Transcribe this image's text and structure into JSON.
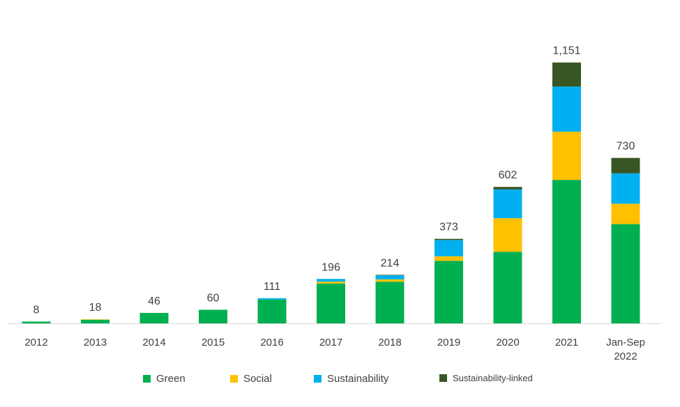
{
  "chart_data": {
    "type": "bar",
    "stacked": true,
    "categories": [
      "2012",
      "2013",
      "2014",
      "2015",
      "2016",
      "2017",
      "2018",
      "2019",
      "2020",
      "2021",
      "Jan-Sep\n2022"
    ],
    "totals_labels": [
      "8",
      "18",
      "46",
      "60",
      "111",
      "196",
      "214",
      "373",
      "602",
      "1,151",
      "730"
    ],
    "series": [
      {
        "name": "Green",
        "color": "#00b050",
        "values": [
          8,
          16,
          46,
          60,
          105,
          176,
          184,
          276,
          316,
          633,
          438
        ]
      },
      {
        "name": "Social",
        "color": "#ffc000",
        "values": [
          0,
          2,
          0,
          0,
          0,
          8,
          10,
          20,
          148,
          213,
          90
        ]
      },
      {
        "name": "Sustainability",
        "color": "#00b0f0",
        "values": [
          0,
          0,
          0,
          0,
          6,
          12,
          18,
          72,
          127,
          199,
          134
        ]
      },
      {
        "name": "Sustainability-linked",
        "color": "#375623",
        "values": [
          0,
          0,
          0,
          0,
          0,
          0,
          2,
          5,
          11,
          106,
          68
        ]
      }
    ],
    "ylim": [
      0,
      1151
    ],
    "grid": false,
    "legend": "bottom"
  }
}
